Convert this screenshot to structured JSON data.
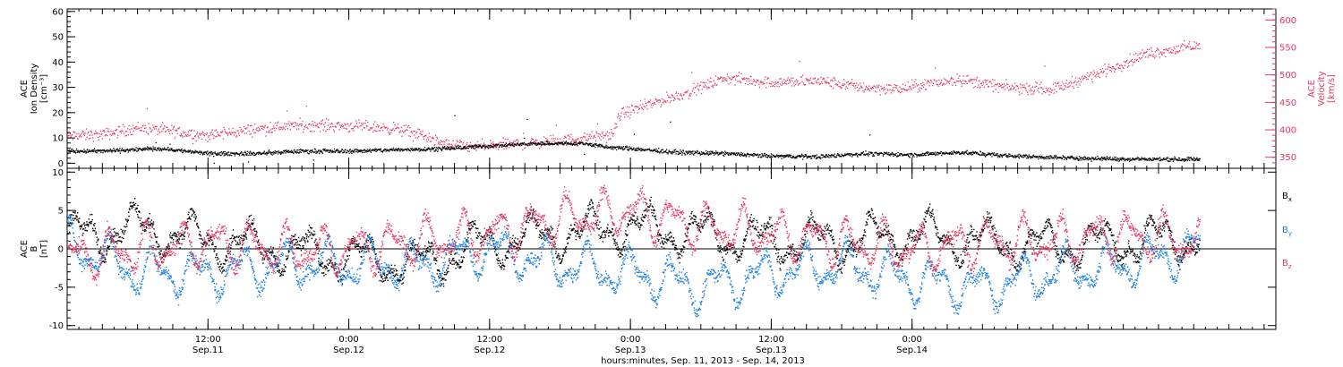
{
  "chart_data": [
    {
      "type": "scatter",
      "panel": "top",
      "ylabel_lines": [
        "ACE",
        "Ion Density",
        "[cm⁻³]"
      ],
      "y2label_lines": [
        "ACE",
        "Velocity",
        "[km/s]"
      ],
      "ylim": [
        -2,
        61
      ],
      "yticks": [
        0,
        10,
        20,
        30,
        40,
        50,
        60
      ],
      "y2lim": [
        330,
        620
      ],
      "y2ticks": [
        350,
        400,
        450,
        500,
        550,
        600
      ],
      "xlim_hours": [
        0,
        103
      ],
      "series": [
        {
          "name": "Ion Density",
          "color": "#000000",
          "axis": "left",
          "anchors_hours": [
            0,
            3,
            8,
            12,
            16,
            20,
            24,
            28,
            32,
            36,
            40,
            44,
            46,
            48,
            52,
            56,
            60,
            64,
            68,
            72,
            76,
            80,
            84,
            88,
            92,
            96
          ],
          "anchors_values": [
            5,
            5,
            6,
            4,
            4,
            5,
            5,
            5.5,
            6,
            7,
            8,
            8,
            6.5,
            6,
            4.5,
            4,
            3,
            2.8,
            4,
            3.5,
            4.5,
            3.2,
            2.5,
            2,
            1.8,
            1.8
          ]
        },
        {
          "name": "Velocity",
          "color": "#e8365f",
          "axis": "right",
          "anchors_hours": [
            0,
            3,
            6,
            9,
            12,
            16,
            20,
            24,
            28,
            30,
            32,
            34,
            36,
            40,
            44,
            46.5,
            47,
            50,
            53,
            56,
            60,
            64,
            68,
            71,
            72,
            76,
            80,
            84,
            88,
            92,
            96
          ],
          "anchors_values": [
            390,
            392,
            405,
            398,
            390,
            402,
            410,
            408,
            403,
            393,
            375,
            370,
            372,
            378,
            385,
            392,
            428,
            450,
            470,
            495,
            487,
            490,
            478,
            475,
            480,
            493,
            478,
            475,
            505,
            540,
            553
          ]
        }
      ]
    },
    {
      "type": "scatter",
      "panel": "bottom",
      "ylabel_lines": [
        "ACE",
        "B",
        "[nT]"
      ],
      "ylim": [
        -10.5,
        10.5
      ],
      "yticks": [
        -10,
        -5,
        0,
        5,
        10
      ],
      "zero_line": true,
      "xlim_hours": [
        0,
        103
      ],
      "series": [
        {
          "name": "Bx",
          "color": "#000000",
          "label_main": "B",
          "label_sub": "x",
          "anchors_hours": [
            0,
            6,
            12,
            18,
            24,
            30,
            36,
            42,
            48,
            54,
            60,
            66,
            72,
            78,
            84,
            90,
            96
          ],
          "anchors_values": [
            1.5,
            3,
            1,
            0,
            -1,
            -2,
            1,
            2,
            3,
            2,
            1,
            1,
            2,
            1,
            0.5,
            1,
            1.5
          ]
        },
        {
          "name": "By",
          "color": "#1a7fe0",
          "label_main": "B",
          "label_sub": "y",
          "anchors_hours": [
            0,
            6,
            12,
            18,
            24,
            30,
            36,
            42,
            48,
            54,
            60,
            66,
            72,
            78,
            84,
            90,
            96
          ],
          "anchors_values": [
            1,
            -3,
            -3,
            -2,
            -2,
            -2,
            0,
            -2,
            -3,
            -5,
            -3,
            -2,
            -4,
            -5,
            -3,
            -2,
            0
          ]
        },
        {
          "name": "Bz",
          "color": "#e8365f",
          "label_main": "B",
          "label_sub": "z",
          "anchors_hours": [
            0,
            6,
            12,
            18,
            24,
            30,
            36,
            42,
            48,
            54,
            60,
            66,
            72,
            78,
            84,
            90,
            96
          ],
          "anchors_values": [
            -1,
            0,
            1,
            0,
            0,
            1,
            2,
            4,
            5,
            3,
            2,
            1,
            0,
            1,
            1,
            2,
            1
          ]
        }
      ]
    }
  ],
  "x_axis": {
    "ticks": [
      {
        "hours": 12,
        "time": "12:00",
        "date": "Sep.11"
      },
      {
        "hours": 24,
        "time": "0:00",
        "date": "Sep.12"
      },
      {
        "hours": 36,
        "time": "12:00",
        "date": "Sep.12"
      },
      {
        "hours": 48,
        "time": "0:00",
        "date": "Sep.13"
      },
      {
        "hours": 60,
        "time": "12:00",
        "date": "Sep.13"
      },
      {
        "hours": 72,
        "time": "0:00",
        "date": "Sep.14"
      }
    ],
    "minor_tick_hours": 1,
    "major_tick_hours": 3,
    "title": "hours:minutes, Sep. 11, 2013 - Sep. 14, 2013"
  }
}
